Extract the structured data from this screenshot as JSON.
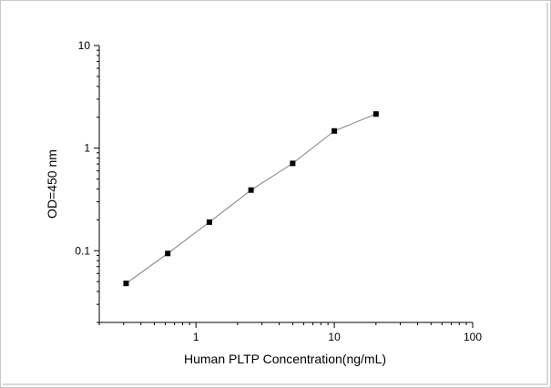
{
  "chart_data": {
    "type": "line",
    "xlabel": "Human PLTP Concentration(ng/mL)",
    "ylabel": "OD=450 nm",
    "x_scale": "log",
    "y_scale": "log",
    "xlim": [
      0.2,
      100
    ],
    "ylim": [
      0.02,
      10
    ],
    "x_ticks": [
      1,
      10,
      100
    ],
    "x_tick_labels": [
      "1",
      "10",
      "100"
    ],
    "y_ticks": [
      0.1,
      1,
      10
    ],
    "y_tick_labels": [
      "0.1",
      "1",
      "10"
    ],
    "grid": false,
    "series": [
      {
        "x": [
          0.3125,
          0.625,
          1.25,
          2.5,
          5,
          10,
          20
        ],
        "y": [
          0.048,
          0.094,
          0.19,
          0.39,
          0.71,
          1.47,
          2.15
        ]
      }
    ],
    "colors": {
      "line": "#808080",
      "marker": "#000000",
      "axis": "#000000"
    }
  }
}
